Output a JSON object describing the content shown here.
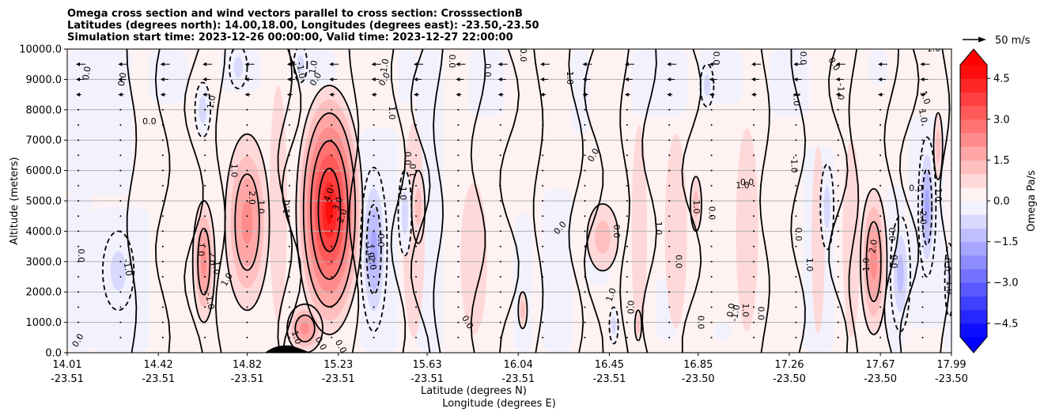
{
  "chart_data": {
    "type": "heatmap",
    "subtype": "filled-contour cross section with wind vectors",
    "title_lines": [
      "Omega cross section and wind vectors parallel to cross section: CrosssectionB",
      "Latitudes (degrees north): 14.00,18.00, Longitudes (degrees east): -23.50,-23.50",
      "Simulation start time: 2023-12-26 00:00:00, Valid time: 2023-12-27 22:00:00"
    ],
    "ylabel": "Altitude (meters)",
    "xlabel_lines": [
      "Latitude (degrees N)",
      "Longitude (degrees E)"
    ],
    "ylim": [
      0,
      10000
    ],
    "yticks": [
      "0.0",
      "1000.0",
      "2000.0",
      "3000.0",
      "4000.0",
      "5000.0",
      "6000.0",
      "7000.0",
      "8000.0",
      "9000.0",
      "10000.0"
    ],
    "ytick_values": [
      0,
      1000,
      2000,
      3000,
      4000,
      5000,
      6000,
      7000,
      8000,
      9000,
      10000
    ],
    "xticks_lat": [
      "14.01",
      "14.42",
      "14.82",
      "15.23",
      "15.63",
      "16.04",
      "16.45",
      "16.85",
      "17.26",
      "17.67",
      "17.99"
    ],
    "xticks_lon": [
      "-23.51",
      "-23.51",
      "-23.51",
      "-23.51",
      "-23.51",
      "-23.51",
      "-23.51",
      "-23.50",
      "-23.50",
      "-23.50",
      "-23.50"
    ],
    "xtick_lat_values": [
      14.01,
      14.42,
      14.82,
      15.23,
      15.63,
      16.04,
      16.45,
      16.85,
      17.26,
      17.67,
      17.99
    ],
    "xlim_lat": [
      14.01,
      17.99
    ],
    "grid": "horizontal",
    "colorbar": {
      "label": "Omega Pa/s",
      "ticks": [
        "−4.5",
        "−3.0",
        "−1.5",
        "0.0",
        "1.5",
        "3.0",
        "4.5"
      ],
      "tick_values": [
        -4.5,
        -3.0,
        -1.5,
        0.0,
        1.5,
        3.0,
        4.5
      ],
      "range": [
        -5,
        5
      ],
      "levels": 20,
      "extend": "both",
      "cmap": "bwr",
      "min_color": "#0000ff",
      "max_color": "#ff0000",
      "mid_color": "#ffffff"
    },
    "quiver_key": {
      "label": "50 m/s",
      "value": 50
    },
    "contour_levels_labeled": [
      -2.0,
      -1.0,
      0.0,
      1.0,
      2.0,
      3.0,
      4.0
    ],
    "features": [
      {
        "name": "strong ascent core (positive omega)",
        "lat_range": [
          15.06,
          15.32
        ],
        "alt_range": [
          200,
          8200
        ],
        "peak": 4.0
      },
      {
        "name": "positive column",
        "lat_range": [
          14.72,
          14.92
        ],
        "alt_range": [
          1500,
          7200
        ],
        "peak": 2.0
      },
      {
        "name": "positive column",
        "lat_range": [
          14.58,
          14.68
        ],
        "alt_range": [
          1000,
          5000
        ],
        "peak": 2.0
      },
      {
        "name": "negative column",
        "lat_range": [
          15.34,
          15.44
        ],
        "alt_range": [
          800,
          6000
        ],
        "peak": -2.0
      },
      {
        "name": "negative pocket",
        "lat_range": [
          14.17,
          14.31
        ],
        "alt_range": [
          1300,
          4000
        ],
        "peak": -1.0
      },
      {
        "name": "negative pocket",
        "lat_range": [
          14.59,
          14.65
        ],
        "alt_range": [
          7100,
          8900
        ],
        "peak": -1.0
      },
      {
        "name": "positive column",
        "lat_range": [
          17.58,
          17.7
        ],
        "alt_range": [
          900,
          5500
        ],
        "peak": 2.0
      },
      {
        "name": "negative column",
        "lat_range": [
          17.72,
          17.82
        ],
        "alt_range": [
          1300,
          5200
        ],
        "peak": -1.0
      },
      {
        "name": "negative column",
        "lat_range": [
          17.84,
          17.94
        ],
        "alt_range": [
          2500,
          7400
        ],
        "peak": -2.0
      },
      {
        "name": "terrain",
        "lat_range": [
          14.92,
          15.13
        ],
        "alt_range": [
          0,
          250
        ]
      }
    ]
  }
}
